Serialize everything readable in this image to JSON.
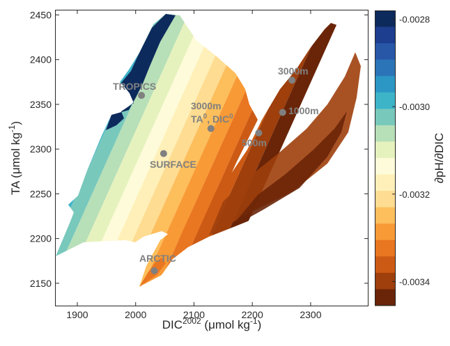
{
  "chart_data": {
    "type": "heatmap",
    "xlabel": {
      "text": "DIC",
      "sup": "2002",
      "units": " (μmol kg",
      "units_sup": "-1",
      "close": ")"
    },
    "ylabel": {
      "text": "TA (μmol kg",
      "sup": "-1",
      "close": ")"
    },
    "xlim": [
      1863,
      2398
    ],
    "ylim": [
      2125,
      2455
    ],
    "xticks": [
      1900,
      2000,
      2100,
      2200,
      2300
    ],
    "yticks": [
      2150,
      2200,
      2250,
      2300,
      2350,
      2400,
      2450
    ],
    "grid": false,
    "colorbar": {
      "label": "∂pH/∂DIC",
      "ticks": [
        "-0.0028",
        "-0.0030",
        "-0.0032",
        "-0.0034"
      ],
      "tick_values": [
        -0.0028,
        -0.003,
        -0.0032,
        -0.0034
      ],
      "range": [
        -0.003455,
        -0.00278
      ],
      "colors": [
        "#0d2a5c",
        "#1d3d8f",
        "#2857a8",
        "#2b74b8",
        "#2c96c4",
        "#3db4c8",
        "#78c8bc",
        "#b7dfb8",
        "#e6f2bd",
        "#fdfbd9",
        "#fef0b8",
        "#fedc91",
        "#fdbe5c",
        "#f89a35",
        "#e97621",
        "#cc5a14",
        "#9e3f0c",
        "#6a2508"
      ]
    },
    "points": [
      {
        "label": "TROPICS",
        "x": 2010,
        "y": 2360
      },
      {
        "label": "SURFACE",
        "x": 2048,
        "y": 2295
      },
      {
        "label": "ARCTIC",
        "x": 2032,
        "y": 2164
      },
      {
        "label": "3000m",
        "x": 2268,
        "y": 2377
      },
      {
        "label": "1000m",
        "x": 2252,
        "y": 2341
      },
      {
        "label": "500m",
        "x": 2211,
        "y": 2318
      }
    ],
    "reference": {
      "label_lines": [
        "3000m",
        "TA",
        "0",
        ", DIC",
        "0"
      ],
      "x": 2129,
      "y": 2323
    }
  }
}
